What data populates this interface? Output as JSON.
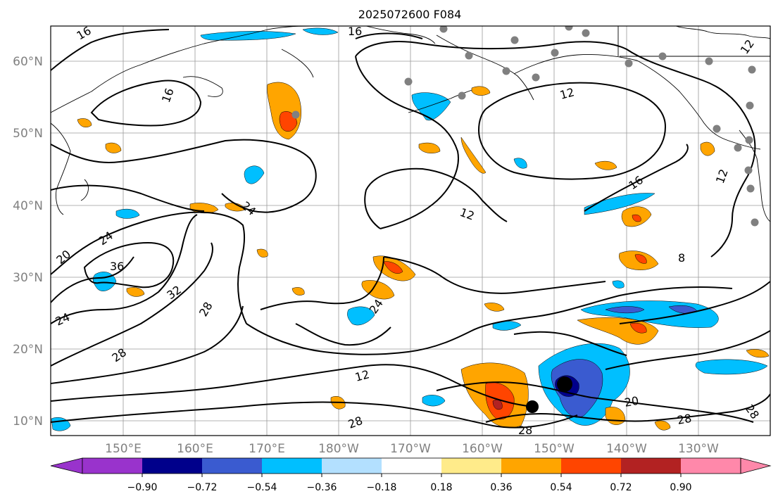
{
  "title": "2025072600 F084",
  "map": {
    "lon_ticks": [
      "150°E",
      "160°E",
      "170°E",
      "180°W",
      "170°W",
      "160°W",
      "150°W",
      "140°W",
      "130°W"
    ],
    "lat_ticks": [
      "10°N",
      "20°N",
      "30°N",
      "40°N",
      "50°N",
      "60°N"
    ],
    "lon_range": [
      140,
      240
    ],
    "lat_range": [
      8,
      65
    ],
    "gridlines": true
  },
  "colorbar": {
    "ticks": [
      "−0.90",
      "−0.72",
      "−0.54",
      "−0.36",
      "−0.18",
      "0.18",
      "0.36",
      "0.54",
      "0.72",
      "0.90"
    ],
    "colors": [
      "#9933cc",
      "#00008b",
      "#3a5bd0",
      "#00bfff",
      "#b3e0ff",
      "#ffffff",
      "#ffeb8a",
      "#ffa500",
      "#ff4500",
      "#b22222",
      "#ff88aa"
    ],
    "extend": "both"
  },
  "contour_labels": [
    {
      "text": "16"
    },
    {
      "text": "16"
    },
    {
      "text": "16"
    },
    {
      "text": "12"
    },
    {
      "text": "12"
    },
    {
      "text": "12"
    },
    {
      "text": "16"
    },
    {
      "text": "12"
    },
    {
      "text": "24"
    },
    {
      "text": "24"
    },
    {
      "text": "20"
    },
    {
      "text": "36"
    },
    {
      "text": "32"
    },
    {
      "text": "28"
    },
    {
      "text": "24"
    },
    {
      "text": "28"
    },
    {
      "text": "24"
    },
    {
      "text": "12"
    },
    {
      "text": "28"
    },
    {
      "text": "28"
    },
    {
      "text": "20"
    },
    {
      "text": "28"
    },
    {
      "text": "28"
    },
    {
      "text": "8"
    }
  ],
  "markers": {
    "stations": "gray-dots",
    "storm_center": "black-dot"
  }
}
